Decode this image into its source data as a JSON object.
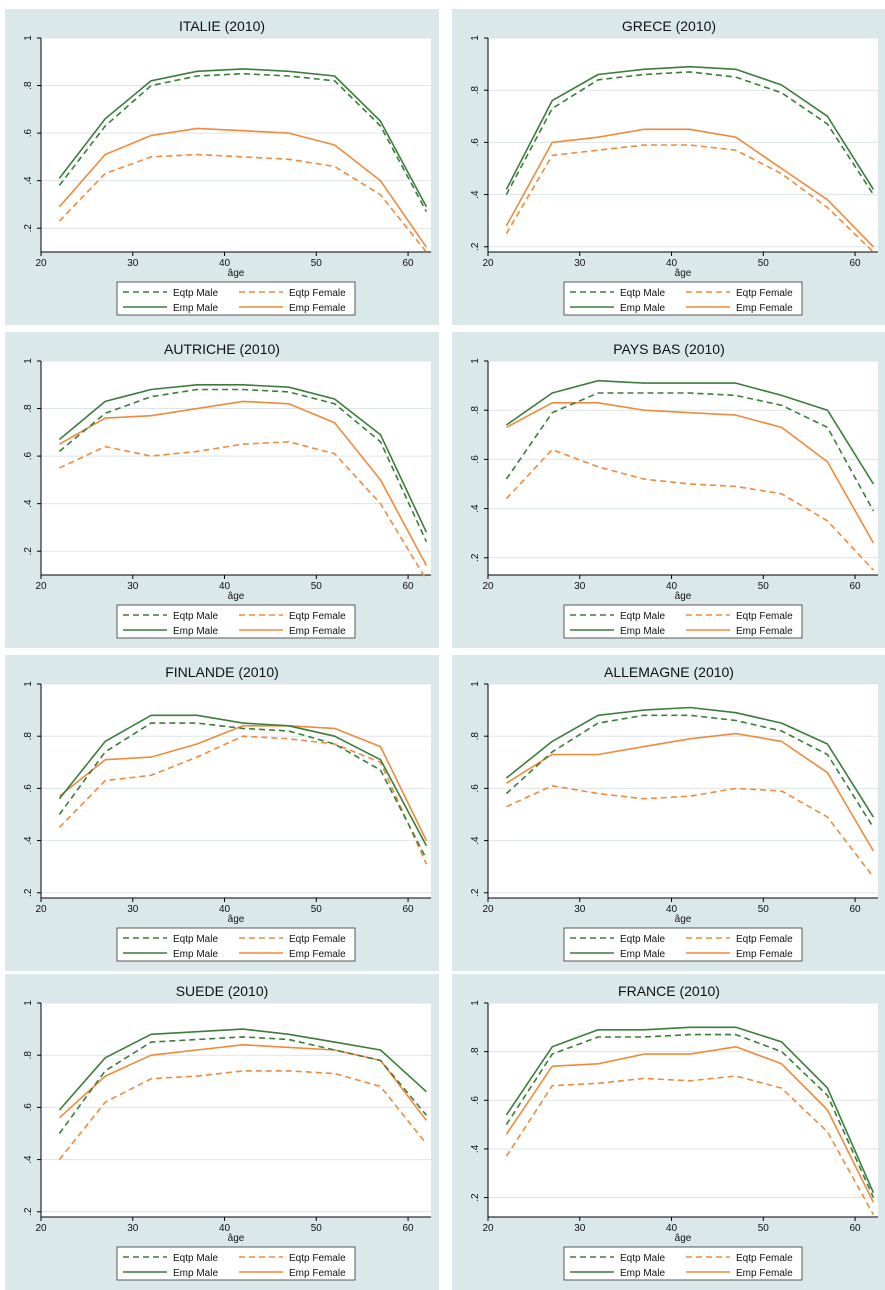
{
  "colors": {
    "panel_bg": "#dbe8ea",
    "plot_bg": "#ffffff",
    "male": "#3a7d3a",
    "female": "#f08a3c",
    "grid": "#dde5e7",
    "axis": "#000000"
  },
  "legend_labels": {
    "eqtp_male": "Eqtp Male",
    "eqtp_female": "Eqtp Female",
    "emp_male": "Emp Male",
    "emp_female": "Emp Female"
  },
  "chart_data": [
    {
      "type": "line",
      "title": "ITALIE (2010)",
      "xlabel": "âge",
      "ylabel": "",
      "xlim": [
        20,
        62.5
      ],
      "ylim": [
        0.1,
        1.0
      ],
      "x_ticks": [
        {
          "v": 20,
          "t": "20"
        },
        {
          "v": 30,
          "t": "30"
        },
        {
          "v": 40,
          "t": "40"
        },
        {
          "v": 50,
          "t": "50"
        },
        {
          "v": 60,
          "t": "60"
        }
      ],
      "y_ticks": [
        {
          "v": 0.2,
          "t": ".2"
        },
        {
          "v": 0.4,
          "t": ".4"
        },
        {
          "v": 0.6,
          "t": ".6"
        },
        {
          "v": 0.8,
          "t": ".8"
        },
        {
          "v": 1.0,
          "t": "1"
        }
      ],
      "grid": true,
      "legend_position": "bottom",
      "x": [
        22,
        27,
        32,
        37,
        42,
        47,
        52,
        57,
        62
      ],
      "series": [
        {
          "name": "Eqtp Male",
          "values": [
            0.38,
            0.63,
            0.8,
            0.84,
            0.85,
            0.84,
            0.82,
            0.63,
            0.27
          ]
        },
        {
          "name": "Eqtp Female",
          "values": [
            0.23,
            0.43,
            0.5,
            0.51,
            0.5,
            0.49,
            0.46,
            0.34,
            0.1
          ]
        },
        {
          "name": "Emp Male",
          "values": [
            0.41,
            0.66,
            0.82,
            0.86,
            0.87,
            0.86,
            0.84,
            0.65,
            0.29
          ]
        },
        {
          "name": "Emp Female",
          "values": [
            0.29,
            0.51,
            0.59,
            0.62,
            0.61,
            0.6,
            0.55,
            0.4,
            0.12
          ]
        }
      ]
    },
    {
      "type": "line",
      "title": "GRECE (2010)",
      "xlabel": "âge",
      "ylabel": "",
      "xlim": [
        20,
        62.5
      ],
      "ylim": [
        0.18,
        1.0
      ],
      "x_ticks": [
        {
          "v": 20,
          "t": "20"
        },
        {
          "v": 30,
          "t": "30"
        },
        {
          "v": 40,
          "t": "40"
        },
        {
          "v": 50,
          "t": "50"
        },
        {
          "v": 60,
          "t": "60"
        }
      ],
      "y_ticks": [
        {
          "v": 0.2,
          "t": ".2"
        },
        {
          "v": 0.4,
          "t": ".4"
        },
        {
          "v": 0.6,
          "t": ".6"
        },
        {
          "v": 0.8,
          "t": ".8"
        },
        {
          "v": 1.0,
          "t": "1"
        }
      ],
      "grid": true,
      "legend_position": "bottom",
      "x": [
        22,
        27,
        32,
        37,
        42,
        47,
        52,
        57,
        62
      ],
      "series": [
        {
          "name": "Eqtp Male",
          "values": [
            0.4,
            0.73,
            0.84,
            0.86,
            0.87,
            0.85,
            0.79,
            0.67,
            0.4
          ]
        },
        {
          "name": "Eqtp Female",
          "values": [
            0.25,
            0.55,
            0.57,
            0.59,
            0.59,
            0.57,
            0.48,
            0.35,
            0.18
          ]
        },
        {
          "name": "Emp Male",
          "values": [
            0.42,
            0.76,
            0.86,
            0.88,
            0.89,
            0.88,
            0.82,
            0.7,
            0.42
          ]
        },
        {
          "name": "Emp Female",
          "values": [
            0.28,
            0.6,
            0.62,
            0.65,
            0.65,
            0.62,
            0.5,
            0.38,
            0.2
          ]
        }
      ]
    },
    {
      "type": "line",
      "title": "AUTRICHE (2010)",
      "xlabel": "âge",
      "ylabel": "",
      "xlim": [
        20,
        62.5
      ],
      "ylim": [
        0.1,
        1.0
      ],
      "x_ticks": [
        {
          "v": 20,
          "t": "20"
        },
        {
          "v": 30,
          "t": "30"
        },
        {
          "v": 40,
          "t": "40"
        },
        {
          "v": 50,
          "t": "50"
        },
        {
          "v": 60,
          "t": "60"
        }
      ],
      "y_ticks": [
        {
          "v": 0.2,
          "t": ".2"
        },
        {
          "v": 0.4,
          "t": ".4"
        },
        {
          "v": 0.6,
          "t": ".6"
        },
        {
          "v": 0.8,
          "t": ".8"
        },
        {
          "v": 1.0,
          "t": "1"
        }
      ],
      "grid": true,
      "legend_position": "bottom",
      "x": [
        22,
        27,
        32,
        37,
        42,
        47,
        52,
        57,
        62
      ],
      "series": [
        {
          "name": "Eqtp Male",
          "values": [
            0.62,
            0.78,
            0.85,
            0.88,
            0.88,
            0.87,
            0.82,
            0.66,
            0.24
          ]
        },
        {
          "name": "Eqtp Female",
          "values": [
            0.55,
            0.64,
            0.6,
            0.62,
            0.65,
            0.66,
            0.61,
            0.4,
            0.08
          ]
        },
        {
          "name": "Emp Male",
          "values": [
            0.67,
            0.83,
            0.88,
            0.9,
            0.9,
            0.89,
            0.84,
            0.69,
            0.28
          ]
        },
        {
          "name": "Emp Female",
          "values": [
            0.65,
            0.76,
            0.77,
            0.8,
            0.83,
            0.82,
            0.74,
            0.5,
            0.14
          ]
        }
      ]
    },
    {
      "type": "line",
      "title": "PAYS BAS (2010)",
      "xlabel": "âge",
      "ylabel": "",
      "xlim": [
        20,
        62.5
      ],
      "ylim": [
        0.13,
        1.0
      ],
      "x_ticks": [
        {
          "v": 20,
          "t": "20"
        },
        {
          "v": 30,
          "t": "30"
        },
        {
          "v": 40,
          "t": "40"
        },
        {
          "v": 50,
          "t": "50"
        },
        {
          "v": 60,
          "t": "60"
        }
      ],
      "y_ticks": [
        {
          "v": 0.2,
          "t": ".2"
        },
        {
          "v": 0.4,
          "t": ".4"
        },
        {
          "v": 0.6,
          "t": ".6"
        },
        {
          "v": 0.8,
          "t": ".8"
        },
        {
          "v": 1.0,
          "t": "1"
        }
      ],
      "grid": true,
      "legend_position": "bottom",
      "x": [
        22,
        27,
        32,
        37,
        42,
        47,
        52,
        57,
        62
      ],
      "series": [
        {
          "name": "Eqtp Male",
          "values": [
            0.52,
            0.79,
            0.87,
            0.87,
            0.87,
            0.86,
            0.82,
            0.73,
            0.39
          ]
        },
        {
          "name": "Eqtp Female",
          "values": [
            0.44,
            0.64,
            0.57,
            0.52,
            0.5,
            0.49,
            0.46,
            0.35,
            0.15
          ]
        },
        {
          "name": "Emp Male",
          "values": [
            0.74,
            0.87,
            0.92,
            0.91,
            0.91,
            0.91,
            0.86,
            0.8,
            0.5
          ]
        },
        {
          "name": "Emp Female",
          "values": [
            0.73,
            0.83,
            0.83,
            0.8,
            0.79,
            0.78,
            0.73,
            0.59,
            0.26
          ]
        }
      ]
    },
    {
      "type": "line",
      "title": "FINLANDE (2010)",
      "xlabel": "âge",
      "ylabel": "",
      "xlim": [
        20,
        62.5
      ],
      "ylim": [
        0.18,
        1.0
      ],
      "x_ticks": [
        {
          "v": 20,
          "t": "20"
        },
        {
          "v": 30,
          "t": "30"
        },
        {
          "v": 40,
          "t": "40"
        },
        {
          "v": 50,
          "t": "50"
        },
        {
          "v": 60,
          "t": "60"
        }
      ],
      "y_ticks": [
        {
          "v": 0.2,
          "t": ".2"
        },
        {
          "v": 0.4,
          "t": ".4"
        },
        {
          "v": 0.6,
          "t": ".6"
        },
        {
          "v": 0.8,
          "t": ".8"
        },
        {
          "v": 1.0,
          "t": "1"
        }
      ],
      "grid": true,
      "legend_position": "bottom",
      "x": [
        22,
        27,
        32,
        37,
        42,
        47,
        52,
        57,
        62
      ],
      "series": [
        {
          "name": "Eqtp Male",
          "values": [
            0.5,
            0.74,
            0.85,
            0.85,
            0.83,
            0.82,
            0.77,
            0.67,
            0.33
          ]
        },
        {
          "name": "Eqtp Female",
          "values": [
            0.45,
            0.63,
            0.65,
            0.72,
            0.8,
            0.79,
            0.77,
            0.7,
            0.31
          ]
        },
        {
          "name": "Emp Male",
          "values": [
            0.56,
            0.78,
            0.88,
            0.88,
            0.85,
            0.84,
            0.8,
            0.71,
            0.38
          ]
        },
        {
          "name": "Emp Female",
          "values": [
            0.57,
            0.71,
            0.72,
            0.77,
            0.84,
            0.84,
            0.83,
            0.76,
            0.4
          ]
        }
      ]
    },
    {
      "type": "line",
      "title": "ALLEMAGNE (2010)",
      "xlabel": "âge",
      "ylabel": "",
      "xlim": [
        20,
        62.5
      ],
      "ylim": [
        0.18,
        1.0
      ],
      "x_ticks": [
        {
          "v": 20,
          "t": "20"
        },
        {
          "v": 30,
          "t": "30"
        },
        {
          "v": 40,
          "t": "40"
        },
        {
          "v": 50,
          "t": "50"
        },
        {
          "v": 60,
          "t": "60"
        }
      ],
      "y_ticks": [
        {
          "v": 0.2,
          "t": ".2"
        },
        {
          "v": 0.4,
          "t": ".4"
        },
        {
          "v": 0.6,
          "t": ".6"
        },
        {
          "v": 0.8,
          "t": ".8"
        },
        {
          "v": 1.0,
          "t": "1"
        }
      ],
      "grid": true,
      "legend_position": "bottom",
      "x": [
        22,
        27,
        32,
        37,
        42,
        47,
        52,
        57,
        62
      ],
      "series": [
        {
          "name": "Eqtp Male",
          "values": [
            0.58,
            0.74,
            0.85,
            0.88,
            0.88,
            0.86,
            0.82,
            0.73,
            0.45
          ]
        },
        {
          "name": "Eqtp Female",
          "values": [
            0.53,
            0.61,
            0.58,
            0.56,
            0.57,
            0.6,
            0.59,
            0.49,
            0.26
          ]
        },
        {
          "name": "Emp Male",
          "values": [
            0.64,
            0.78,
            0.88,
            0.9,
            0.91,
            0.89,
            0.85,
            0.77,
            0.49
          ]
        },
        {
          "name": "Emp Female",
          "values": [
            0.62,
            0.73,
            0.73,
            0.76,
            0.79,
            0.81,
            0.78,
            0.66,
            0.36
          ]
        }
      ]
    },
    {
      "type": "line",
      "title": "SUEDE (2010)",
      "xlabel": "âge",
      "ylabel": "",
      "xlim": [
        20,
        62.5
      ],
      "ylim": [
        0.18,
        1.0
      ],
      "x_ticks": [
        {
          "v": 20,
          "t": "20"
        },
        {
          "v": 30,
          "t": "30"
        },
        {
          "v": 40,
          "t": "40"
        },
        {
          "v": 50,
          "t": "50"
        },
        {
          "v": 60,
          "t": "60"
        }
      ],
      "y_ticks": [
        {
          "v": 0.2,
          "t": ".2"
        },
        {
          "v": 0.4,
          "t": ".4"
        },
        {
          "v": 0.6,
          "t": ".6"
        },
        {
          "v": 0.8,
          "t": ".8"
        },
        {
          "v": 1.0,
          "t": "1"
        }
      ],
      "grid": true,
      "legend_position": "bottom",
      "x": [
        22,
        27,
        32,
        37,
        42,
        47,
        52,
        57,
        62
      ],
      "series": [
        {
          "name": "Eqtp Male",
          "values": [
            0.5,
            0.74,
            0.85,
            0.86,
            0.87,
            0.86,
            0.82,
            0.78,
            0.57
          ]
        },
        {
          "name": "Eqtp Female",
          "values": [
            0.4,
            0.62,
            0.71,
            0.72,
            0.74,
            0.74,
            0.73,
            0.68,
            0.46
          ]
        },
        {
          "name": "Emp Male",
          "values": [
            0.59,
            0.79,
            0.88,
            0.89,
            0.9,
            0.88,
            0.85,
            0.82,
            0.66
          ]
        },
        {
          "name": "Emp Female",
          "values": [
            0.56,
            0.72,
            0.8,
            0.82,
            0.84,
            0.83,
            0.82,
            0.78,
            0.55
          ]
        }
      ]
    },
    {
      "type": "line",
      "title": "FRANCE (2010)",
      "xlabel": "âge",
      "ylabel": "",
      "xlim": [
        20,
        62.5
      ],
      "ylim": [
        0.12,
        1.0
      ],
      "x_ticks": [
        {
          "v": 20,
          "t": "20"
        },
        {
          "v": 30,
          "t": "30"
        },
        {
          "v": 40,
          "t": "40"
        },
        {
          "v": 50,
          "t": "50"
        },
        {
          "v": 60,
          "t": "60"
        }
      ],
      "y_ticks": [
        {
          "v": 0.2,
          "t": ".2"
        },
        {
          "v": 0.4,
          "t": ".4"
        },
        {
          "v": 0.6,
          "t": ".6"
        },
        {
          "v": 0.8,
          "t": ".8"
        },
        {
          "v": 1.0,
          "t": "1"
        }
      ],
      "grid": true,
      "legend_position": "bottom",
      "x": [
        22,
        27,
        32,
        37,
        42,
        47,
        52,
        57,
        62
      ],
      "series": [
        {
          "name": "Eqtp Male",
          "values": [
            0.5,
            0.79,
            0.86,
            0.86,
            0.87,
            0.87,
            0.8,
            0.62,
            0.2
          ]
        },
        {
          "name": "Eqtp Female",
          "values": [
            0.37,
            0.66,
            0.67,
            0.69,
            0.68,
            0.7,
            0.65,
            0.47,
            0.13
          ]
        },
        {
          "name": "Emp Male",
          "values": [
            0.54,
            0.82,
            0.89,
            0.89,
            0.9,
            0.9,
            0.84,
            0.65,
            0.22
          ]
        },
        {
          "name": "Emp Female",
          "values": [
            0.46,
            0.74,
            0.75,
            0.79,
            0.79,
            0.82,
            0.75,
            0.56,
            0.18
          ]
        }
      ]
    }
  ]
}
